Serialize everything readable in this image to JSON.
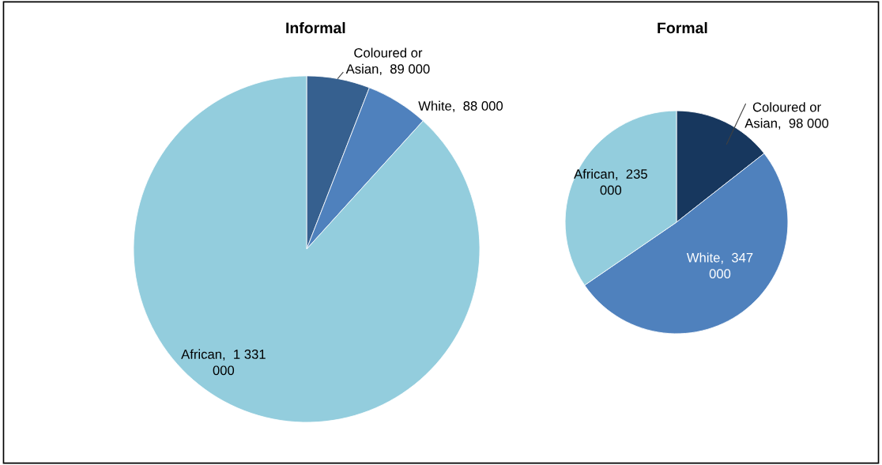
{
  "chart_data": [
    {
      "type": "pie",
      "title": "Informal",
      "categories": [
        "Coloured or Asian",
        "White",
        "African"
      ],
      "values": [
        89000,
        88000,
        1331000
      ],
      "value_labels": [
        "89 000",
        "88 000",
        "1 331 000"
      ],
      "colors": [
        "#36608f",
        "#4f81bd",
        "#93cddd"
      ],
      "legend": false
    },
    {
      "type": "pie",
      "title": "Formal",
      "categories": [
        "Coloured or Asian",
        "White",
        "African"
      ],
      "values": [
        98000,
        347000,
        235000
      ],
      "value_labels": [
        "98 000",
        "347 000",
        "235 000"
      ],
      "colors": [
        "#17375e",
        "#4f81bd",
        "#93cddd"
      ],
      "legend": false
    }
  ]
}
